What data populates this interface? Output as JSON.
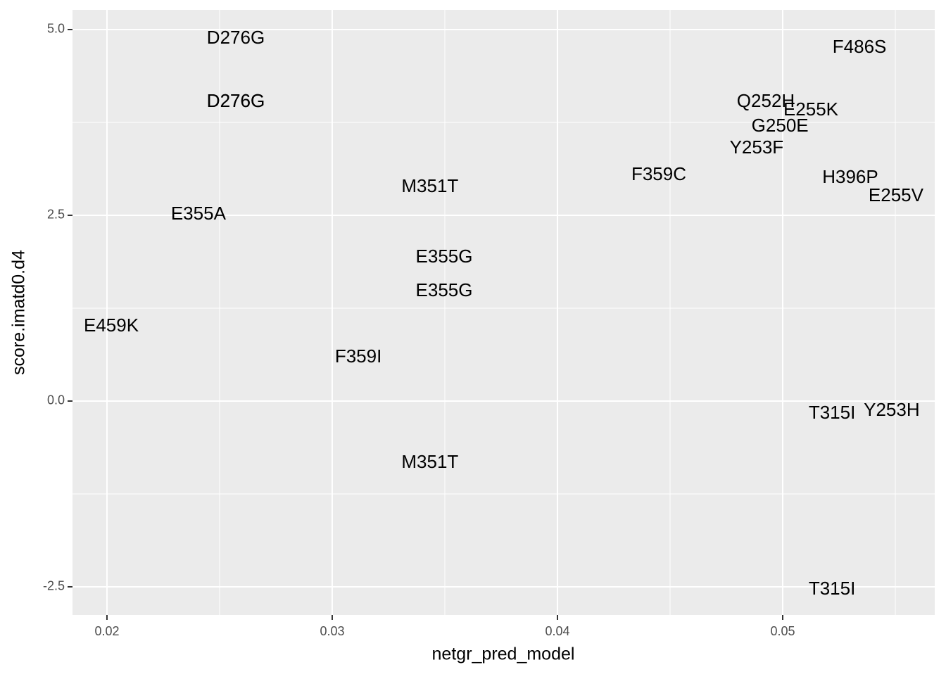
{
  "chart_data": {
    "type": "scatter",
    "x_label": "netgr_pred_model",
    "y_label": "score.imatd0.d4",
    "labels": [
      "D276G",
      "D276G",
      "D276G",
      "F486S",
      "Q252H",
      "E255K",
      "G250E",
      "Y253F",
      "F359C",
      "H396P",
      "E255V",
      "M351T",
      "E355A",
      "E355G",
      "E355G",
      "E459K",
      "F359I",
      "T315I",
      "Y253H",
      "M351T",
      "T315I"
    ],
    "x": [
      0.02572,
      0.02572,
      0.02572,
      0.05341,
      0.04925,
      0.05125,
      0.04988,
      0.04884,
      0.0445,
      0.053,
      0.05503,
      0.03434,
      0.02406,
      0.03497,
      0.03497,
      0.02019,
      0.03116,
      0.05219,
      0.05484,
      0.03434,
      0.05219
    ],
    "y": [
      4.877,
      4.025,
      4.025,
      4.754,
      4.025,
      3.911,
      3.693,
      3.4,
      3.04,
      3.002,
      2.756,
      2.879,
      2.51,
      1.932,
      1.477,
      1.004,
      0.587,
      -0.17,
      -0.133,
      -0.833,
      -2.538
    ],
    "xlim": [
      0.01847,
      0.05675
    ],
    "ylim": [
      -2.879,
      5.265
    ],
    "xticks": [
      0.02,
      0.03,
      0.04,
      0.05
    ],
    "yticks": [
      {
        "value": -2.5,
        "label": "-2.5"
      },
      {
        "value": 0,
        "label": "0.0"
      },
      2.5,
      {
        "value": 5,
        "label": "5.0"
      }
    ],
    "grid": true
  }
}
